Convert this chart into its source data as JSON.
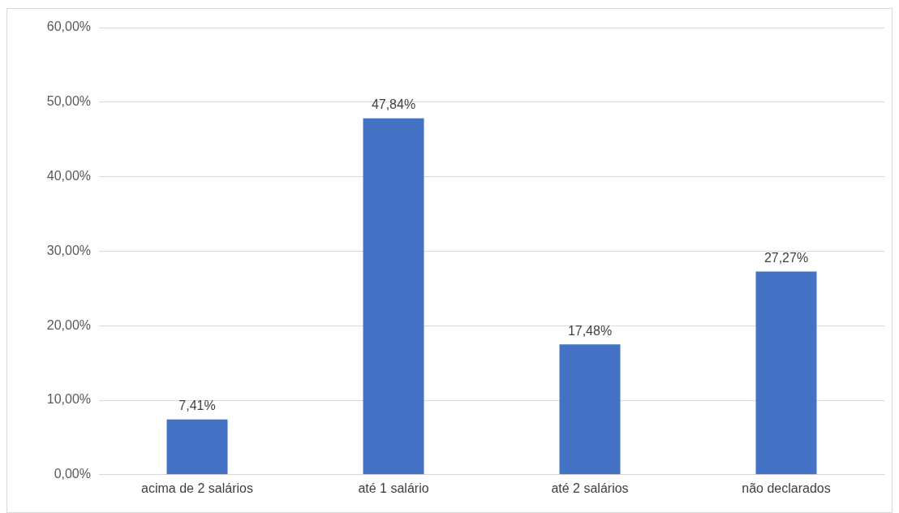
{
  "chart_data": {
    "type": "bar",
    "categories": [
      "acima de 2 salários",
      "até 1 salário",
      "até 2 salários",
      "não declarados"
    ],
    "values": [
      7.41,
      47.84,
      17.48,
      27.27
    ],
    "value_labels": [
      "7,41%",
      "47,84%",
      "17,48%",
      "27,27%"
    ],
    "color": "#4472c4",
    "ylim": [
      0,
      60
    ],
    "yticks": [
      {
        "value": 0,
        "label": "0,00%"
      },
      {
        "value": 10,
        "label": "10,00%"
      },
      {
        "value": 20,
        "label": "20,00%"
      },
      {
        "value": 30,
        "label": "30,00%"
      },
      {
        "value": 40,
        "label": "40,00%"
      },
      {
        "value": 50,
        "label": "50,00%"
      },
      {
        "value": 60,
        "label": "60,00%"
      }
    ],
    "grid": "y",
    "legend": false
  }
}
